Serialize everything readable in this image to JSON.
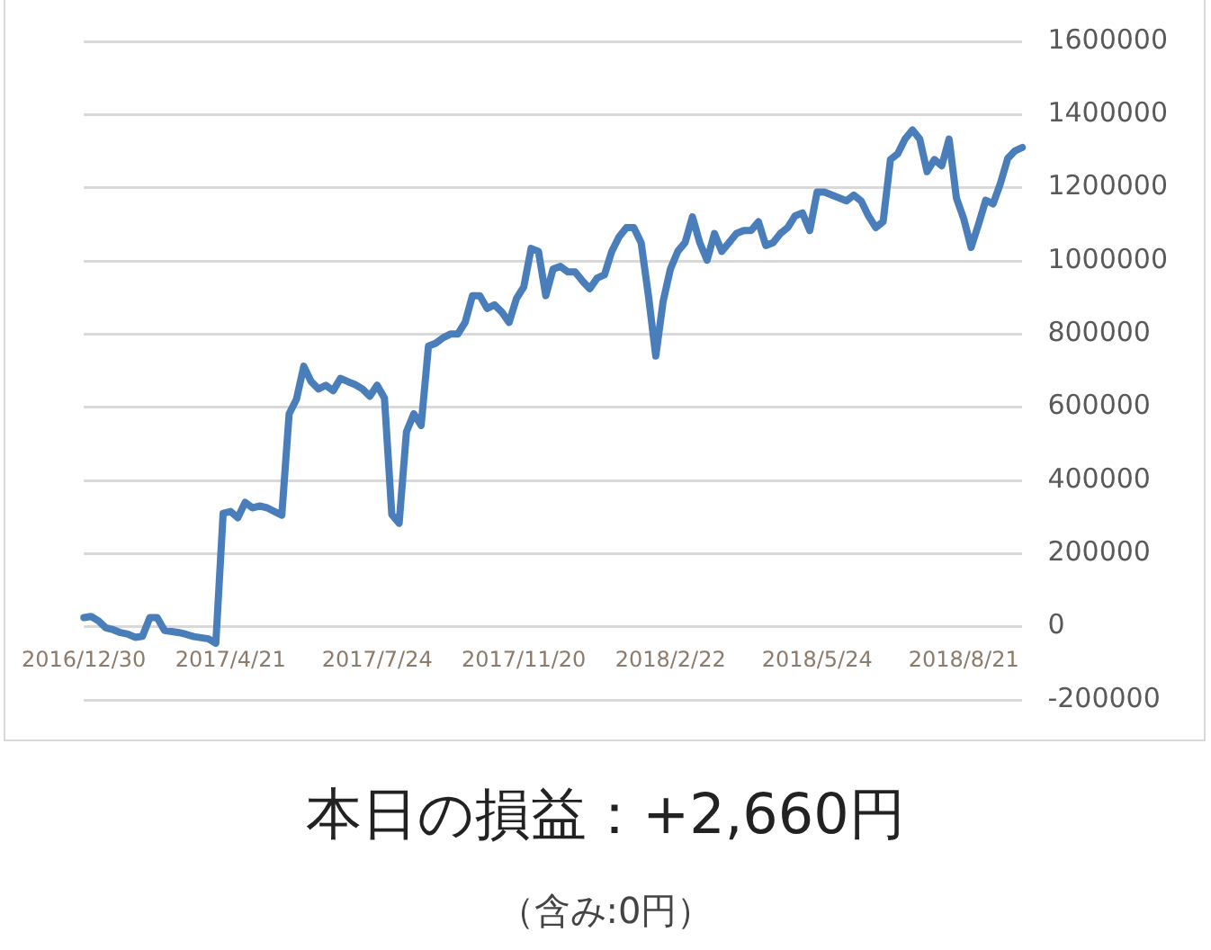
{
  "chart_data": {
    "type": "line",
    "categories": [
      "2016/12/30",
      null,
      null,
      null,
      null,
      null,
      null,
      null,
      null,
      null,
      null,
      null,
      null,
      null,
      null,
      null,
      null,
      null,
      null,
      null,
      "2017/4/21",
      null,
      null,
      null,
      null,
      null,
      null,
      null,
      null,
      null,
      null,
      null,
      null,
      null,
      null,
      null,
      null,
      null,
      null,
      null,
      "2017/7/24",
      null,
      null,
      null,
      null,
      null,
      null,
      null,
      null,
      null,
      null,
      null,
      null,
      null,
      null,
      null,
      null,
      null,
      null,
      null,
      "2017/11/20",
      null,
      null,
      null,
      null,
      null,
      null,
      null,
      null,
      null,
      null,
      null,
      null,
      null,
      null,
      null,
      null,
      null,
      null,
      null,
      "2018/2/22",
      null,
      null,
      null,
      null,
      null,
      null,
      null,
      null,
      null,
      null,
      null,
      null,
      null,
      null,
      null,
      null,
      null,
      null,
      null,
      "2018/5/24",
      null,
      null,
      null,
      null,
      null,
      null,
      null,
      null,
      null,
      null,
      null,
      null,
      null,
      null,
      null,
      null,
      null,
      null,
      null,
      "2018/8/21",
      null,
      null,
      null,
      null,
      null,
      null,
      null,
      null
    ],
    "values": [
      25000,
      28000,
      16000,
      -3000,
      -8000,
      -16000,
      -20000,
      -29000,
      -26000,
      25000,
      25000,
      -10000,
      -13000,
      -16000,
      -21000,
      -27000,
      -30000,
      -33000,
      -45000,
      310000,
      315000,
      298000,
      340000,
      325000,
      330000,
      325000,
      315000,
      305000,
      582000,
      622000,
      712000,
      670000,
      650000,
      660000,
      645000,
      679000,
      670000,
      662000,
      650000,
      630000,
      660000,
      625000,
      307000,
      283000,
      533000,
      582000,
      550000,
      767000,
      775000,
      790000,
      800000,
      800000,
      832000,
      905000,
      905000,
      870000,
      880000,
      860000,
      832000,
      897000,
      929000,
      1034000,
      1026000,
      905000,
      978000,
      985000,
      970000,
      970000,
      945000,
      924000,
      953000,
      962000,
      1026000,
      1066000,
      1091000,
      1091000,
      1050000,
      905000,
      740000,
      889000,
      978000,
      1026000,
      1050000,
      1120000,
      1050000,
      1002000,
      1075000,
      1026000,
      1050000,
      1075000,
      1083000,
      1083000,
      1107000,
      1042000,
      1050000,
      1075000,
      1091000,
      1123000,
      1131000,
      1083000,
      1188000,
      1188000,
      1180000,
      1172000,
      1164000,
      1180000,
      1164000,
      1123000,
      1091000,
      1107000,
      1277000,
      1293000,
      1333000,
      1358000,
      1333000,
      1244000,
      1277000,
      1260000,
      1333000,
      1172000,
      1115000,
      1037000,
      1099000,
      1166000,
      1156000,
      1212000,
      1280000,
      1301000,
      1310000
    ],
    "color": "#4a7ebb",
    "ylim": [
      -200000,
      1600000
    ],
    "yticks": [
      -200000,
      0,
      200000,
      400000,
      600000,
      800000,
      1000000,
      1200000,
      1400000,
      1600000
    ],
    "grid": "y",
    "marker": "none",
    "line_style": "solid",
    "annotations": [
      "本日の損益：+2,660円",
      "（含み:0円）"
    ]
  }
}
